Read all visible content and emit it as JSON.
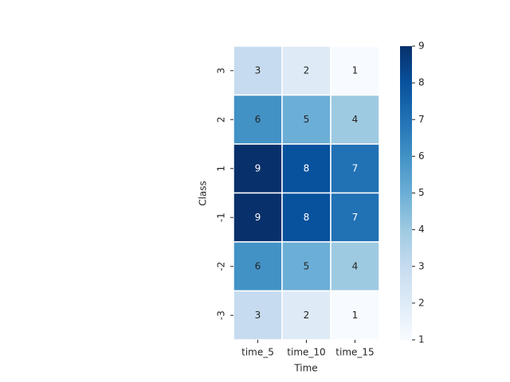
{
  "chart_data": {
    "type": "heatmap",
    "x_label": "Time",
    "y_label": "Class",
    "x_categories": [
      "time_5",
      "time_10",
      "time_15"
    ],
    "y_categories": [
      "3",
      "2",
      "1",
      "-1",
      "-2",
      "-3"
    ],
    "values": [
      [
        3,
        2,
        1
      ],
      [
        6,
        5,
        4
      ],
      [
        9,
        8,
        7
      ],
      [
        9,
        8,
        7
      ],
      [
        6,
        5,
        4
      ],
      [
        3,
        2,
        1
      ]
    ],
    "colormap": "Blues",
    "clim": [
      1,
      9
    ],
    "cticks": [
      1,
      2,
      3,
      4,
      5,
      6,
      7,
      8,
      9
    ],
    "cell_border_color": "#ffffff"
  }
}
